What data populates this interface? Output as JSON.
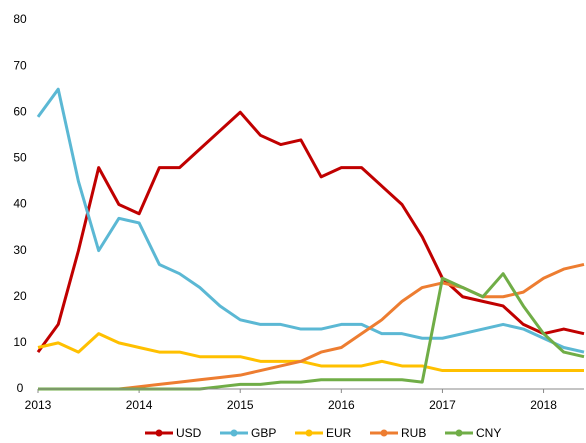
{
  "chart_data": {
    "type": "line",
    "x": [
      2013.0,
      2013.2,
      2013.4,
      2013.6,
      2013.8,
      2014.0,
      2014.2,
      2014.4,
      2014.6,
      2014.8,
      2015.0,
      2015.2,
      2015.4,
      2015.6,
      2015.8,
      2016.0,
      2016.2,
      2016.4,
      2016.6,
      2016.8,
      2017.0,
      2017.2,
      2017.4,
      2017.6,
      2017.8,
      2018.0,
      2018.2,
      2018.4
    ],
    "series": [
      {
        "name": "USD",
        "color": "#c00000",
        "values": [
          8,
          14,
          30,
          48,
          40,
          38,
          48,
          48,
          52,
          56,
          60,
          55,
          53,
          54,
          46,
          48,
          48,
          44,
          40,
          33,
          24,
          20,
          19,
          18,
          14,
          12,
          13,
          12
        ]
      },
      {
        "name": "GBP",
        "color": "#5bb8d4",
        "values": [
          59,
          65,
          45,
          30,
          37,
          36,
          27,
          25,
          22,
          18,
          15,
          14,
          14,
          13,
          13,
          14,
          14,
          12,
          12,
          11,
          11,
          12,
          13,
          14,
          13,
          11,
          9,
          8
        ]
      },
      {
        "name": "EUR",
        "color": "#ffc000",
        "values": [
          9,
          10,
          8,
          12,
          10,
          9,
          8,
          8,
          7,
          7,
          7,
          6,
          6,
          6,
          5,
          5,
          5,
          6,
          5,
          5,
          4,
          4,
          4,
          4,
          4,
          4,
          4,
          4
        ]
      },
      {
        "name": "RUB",
        "color": "#ed7d31",
        "values": [
          0,
          0,
          0,
          0,
          0,
          0.5,
          1,
          1.5,
          2,
          2.5,
          3,
          4,
          5,
          6,
          8,
          9,
          12,
          15,
          19,
          22,
          23,
          22,
          20,
          20,
          21,
          24,
          26,
          27
        ]
      },
      {
        "name": "CNY",
        "color": "#70ad47",
        "values": [
          0,
          0,
          0,
          0,
          0,
          0,
          0,
          0,
          0,
          0.5,
          1,
          1,
          1.5,
          1.5,
          2,
          2,
          2,
          2,
          2,
          1.5,
          24,
          22,
          20,
          25,
          18,
          12,
          8,
          7
        ]
      }
    ],
    "xlim": [
      2013,
      2018.4
    ],
    "xticks": [
      2013,
      2014,
      2015,
      2016,
      2017,
      2018
    ],
    "ylim": [
      0,
      80
    ],
    "yticks": [
      0,
      10,
      20,
      30,
      40,
      50,
      60,
      70,
      80
    ],
    "grid": false
  }
}
